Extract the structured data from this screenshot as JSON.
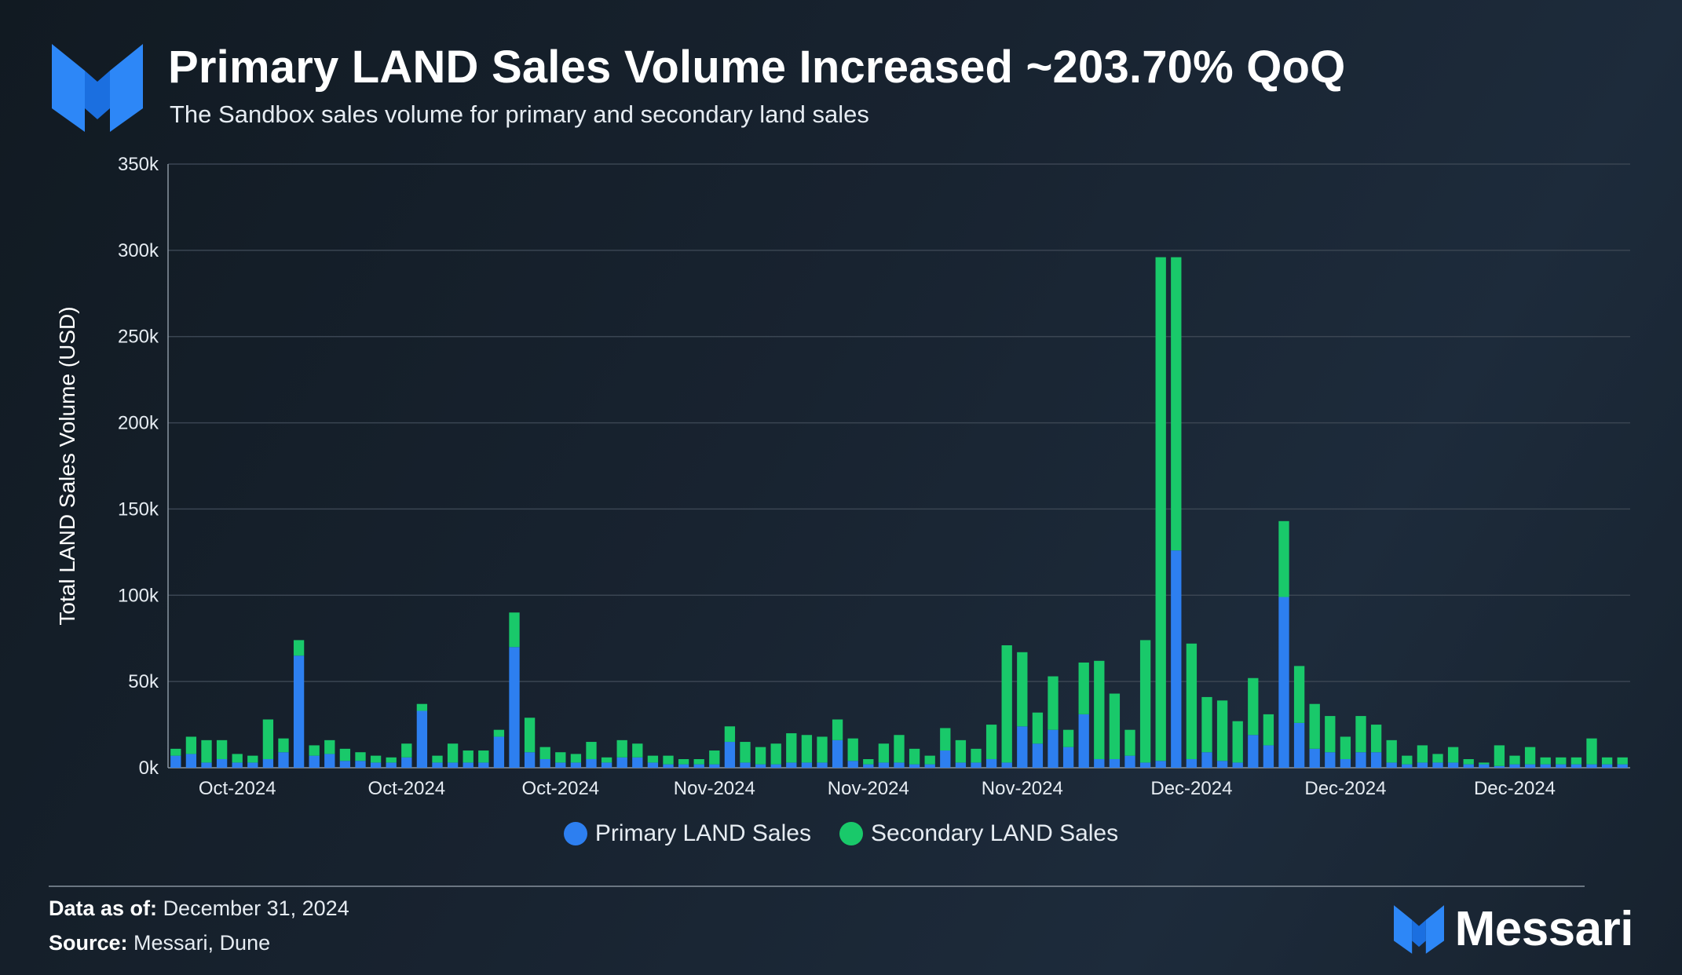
{
  "header": {
    "title": "Primary LAND Sales Volume Increased ~203.70% QoQ",
    "subtitle": "The Sandbox sales volume for primary and secondary land sales"
  },
  "colors": {
    "primary": "#2d7ff0",
    "secondary": "#19c96a",
    "grid": "#3a4552",
    "axis": "#8a95a1"
  },
  "footer": {
    "data_as_of_label": "Data as of:",
    "data_as_of_value": "December 31, 2024",
    "source_label": "Source:",
    "source_value": "Messari, Dune",
    "brand": "Messari"
  },
  "chart_data": {
    "type": "bar",
    "stacked": true,
    "title": "Primary LAND Sales Volume Increased ~203.70% QoQ",
    "ylabel": "Total LAND Sales Volume (USD)",
    "xlabel": "",
    "ylim": [
      0,
      350000
    ],
    "yticks": [
      0,
      50000,
      100000,
      150000,
      200000,
      250000,
      300000,
      350000
    ],
    "ytick_labels": [
      "0k",
      "50k",
      "100k",
      "150k",
      "200k",
      "250k",
      "300k",
      "350k"
    ],
    "xtick_labels": [
      {
        "index": 4,
        "label": "Oct-2024"
      },
      {
        "index": 15,
        "label": "Oct-2024"
      },
      {
        "index": 25,
        "label": "Oct-2024"
      },
      {
        "index": 35,
        "label": "Nov-2024"
      },
      {
        "index": 45,
        "label": "Nov-2024"
      },
      {
        "index": 55,
        "label": "Nov-2024"
      },
      {
        "index": 66,
        "label": "Dec-2024"
      },
      {
        "index": 76,
        "label": "Dec-2024"
      },
      {
        "index": 87,
        "label": "Dec-2024"
      }
    ],
    "legend": [
      "Primary LAND Sales",
      "Secondary LAND Sales"
    ],
    "series": [
      {
        "name": "Primary LAND Sales",
        "values": [
          7000,
          8000,
          3000,
          5000,
          3000,
          3000,
          5000,
          9000,
          65000,
          7000,
          8000,
          4000,
          4000,
          3000,
          3000,
          6000,
          33000,
          3000,
          3000,
          3000,
          3000,
          18000,
          70000,
          9000,
          5000,
          3000,
          3000,
          5000,
          3000,
          6000,
          6000,
          3000,
          2000,
          2000,
          2000,
          2000,
          15000,
          3000,
          2000,
          2000,
          3000,
          3000,
          3000,
          16000,
          4000,
          2000,
          3000,
          3000,
          2000,
          2000,
          10000,
          3000,
          3000,
          5000,
          3000,
          24000,
          14000,
          22000,
          12000,
          31000,
          5000,
          5000,
          7000,
          3000,
          4000,
          126000,
          5000,
          9000,
          4000,
          3000,
          19000,
          13000,
          99000,
          26000,
          11000,
          9000,
          5000,
          9000,
          9000,
          3000,
          2000,
          3000,
          3000,
          3000,
          2000,
          2000,
          1000,
          2000,
          2000,
          2000,
          2000,
          2000,
          2000,
          2000,
          2000
        ]
      },
      {
        "name": "Secondary LAND Sales",
        "values": [
          4000,
          10000,
          13000,
          11000,
          5000,
          4000,
          23000,
          8000,
          9000,
          6000,
          8000,
          7000,
          5000,
          4000,
          3000,
          8000,
          4000,
          4000,
          11000,
          7000,
          7000,
          4000,
          20000,
          20000,
          7000,
          6000,
          5000,
          10000,
          3000,
          10000,
          8000,
          4000,
          5000,
          3000,
          3000,
          8000,
          9000,
          12000,
          10000,
          12000,
          17000,
          16000,
          15000,
          12000,
          13000,
          3000,
          11000,
          16000,
          9000,
          5000,
          13000,
          13000,
          8000,
          20000,
          68000,
          43000,
          18000,
          31000,
          10000,
          30000,
          57000,
          38000,
          15000,
          71000,
          292000,
          170000,
          67000,
          32000,
          35000,
          24000,
          33000,
          18000,
          44000,
          33000,
          26000,
          21000,
          13000,
          21000,
          16000,
          13000,
          5000,
          10000,
          5000,
          9000,
          3000,
          1000,
          12000,
          5000,
          10000,
          4000,
          4000,
          4000,
          15000,
          4000,
          4000
        ]
      }
    ]
  }
}
